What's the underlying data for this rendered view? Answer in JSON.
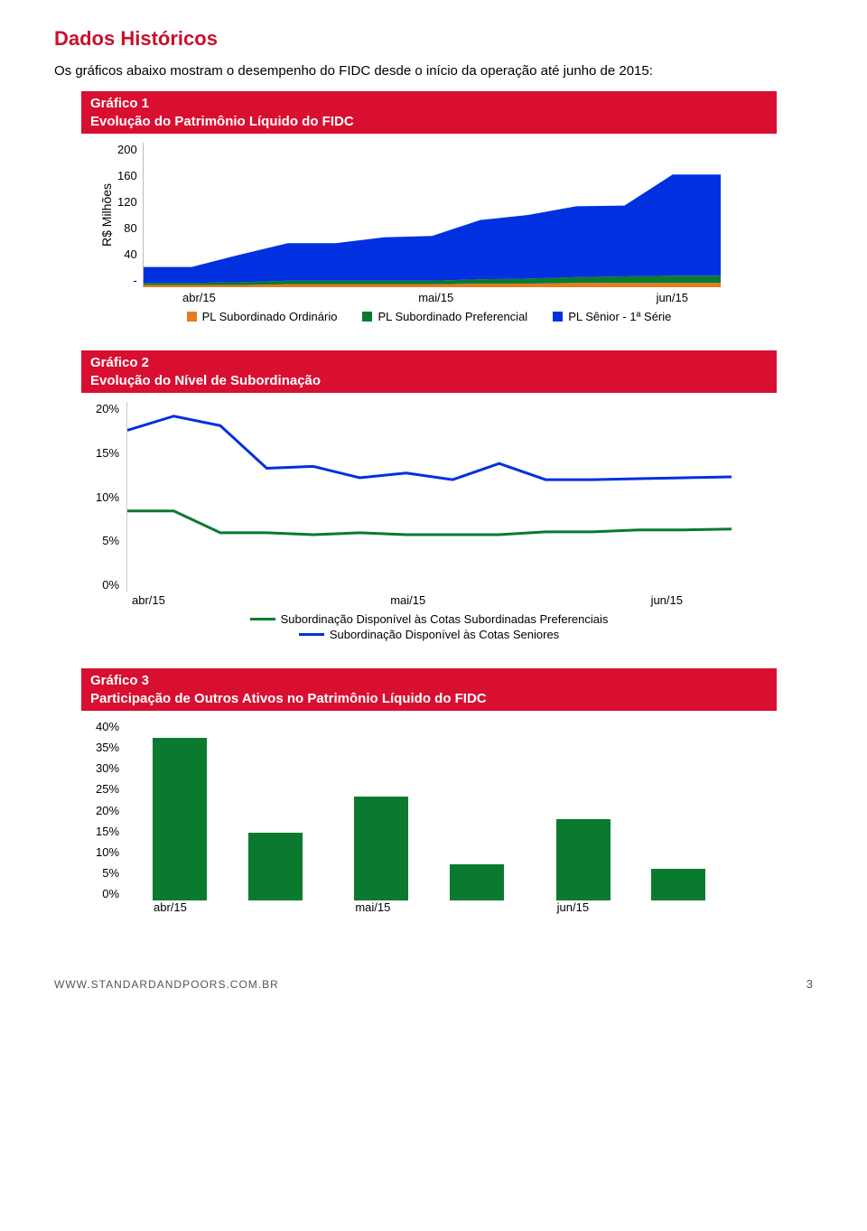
{
  "page_title": "Dados Históricos",
  "intro": "Os gráficos abaixo mostram o desempenho do FIDC desde o início da operação até junho de 2015:",
  "chart1": {
    "type": "area",
    "header_line1": "Gráfico 1",
    "header_line2": "Evolução do Patrimônio Líquido do FIDC",
    "ylabel": "R$ Milhões",
    "yticks": [
      "200",
      "160",
      "120",
      "80",
      "40",
      "-"
    ],
    "xticks": [
      "abr/15",
      "mai/15",
      "jun/15"
    ],
    "ymax": 200,
    "series": [
      {
        "name": "PL Subordinado Ordinário",
        "color": "#e57c1f",
        "values": [
          3,
          3,
          3,
          4,
          4,
          4,
          4,
          5,
          5,
          6,
          6,
          6,
          6
        ]
      },
      {
        "name": "PL Subordinado Preferencial",
        "color": "#0a7a2f",
        "values": [
          3,
          3,
          4,
          5,
          5,
          5,
          5,
          6,
          7,
          8,
          9,
          10,
          10
        ]
      },
      {
        "name": "PL Sênior - 1ª Série",
        "color": "#0030e0",
        "values": [
          22,
          22,
          38,
          52,
          52,
          60,
          62,
          82,
          88,
          98,
          98,
          140,
          140
        ]
      }
    ]
  },
  "chart2": {
    "type": "line",
    "header_line1": "Gráfico 2",
    "header_line2": "Evolução do Nível de Subordinação",
    "yticks": [
      "20%",
      "15%",
      "10%",
      "5%",
      "0%"
    ],
    "ymax": 20,
    "xticks": [
      "abr/15",
      "mai/15",
      "jun/15"
    ],
    "series": [
      {
        "name": "Subordinação Disponível às Cotas Subordinadas Preferenciais",
        "color": "#0a7a2f",
        "values": [
          8.5,
          8.5,
          6.2,
          6.2,
          6.0,
          6.2,
          6.0,
          6.0,
          6.0,
          6.3,
          6.3,
          6.5,
          6.5,
          6.6
        ]
      },
      {
        "name": "Subordinação Disponível às Cotas Seniores",
        "color": "#0030e0",
        "values": [
          17,
          18.5,
          17.5,
          13,
          13.2,
          12,
          12.5,
          11.8,
          13.5,
          11.8,
          11.8,
          11.9,
          12,
          12.1
        ]
      }
    ]
  },
  "chart3": {
    "type": "bar",
    "header_line1": "Gráfico 3",
    "header_line2": "Participação de Outros Ativos no Patrimônio Líquido do FIDC",
    "yticks": [
      "40%",
      "35%",
      "30%",
      "25%",
      "20%",
      "15%",
      "10%",
      "5%",
      "0%"
    ],
    "ymax": 40,
    "bar_color": "#0a7a2f",
    "categories": [
      "abr/15",
      "mai/15",
      "jun/15"
    ],
    "groups": [
      [
        36,
        15
      ],
      [
        23,
        8
      ],
      [
        18,
        7
      ]
    ]
  },
  "footer_url": "WWW.STANDARDANDPOORS.COM.BR",
  "footer_page": "3"
}
